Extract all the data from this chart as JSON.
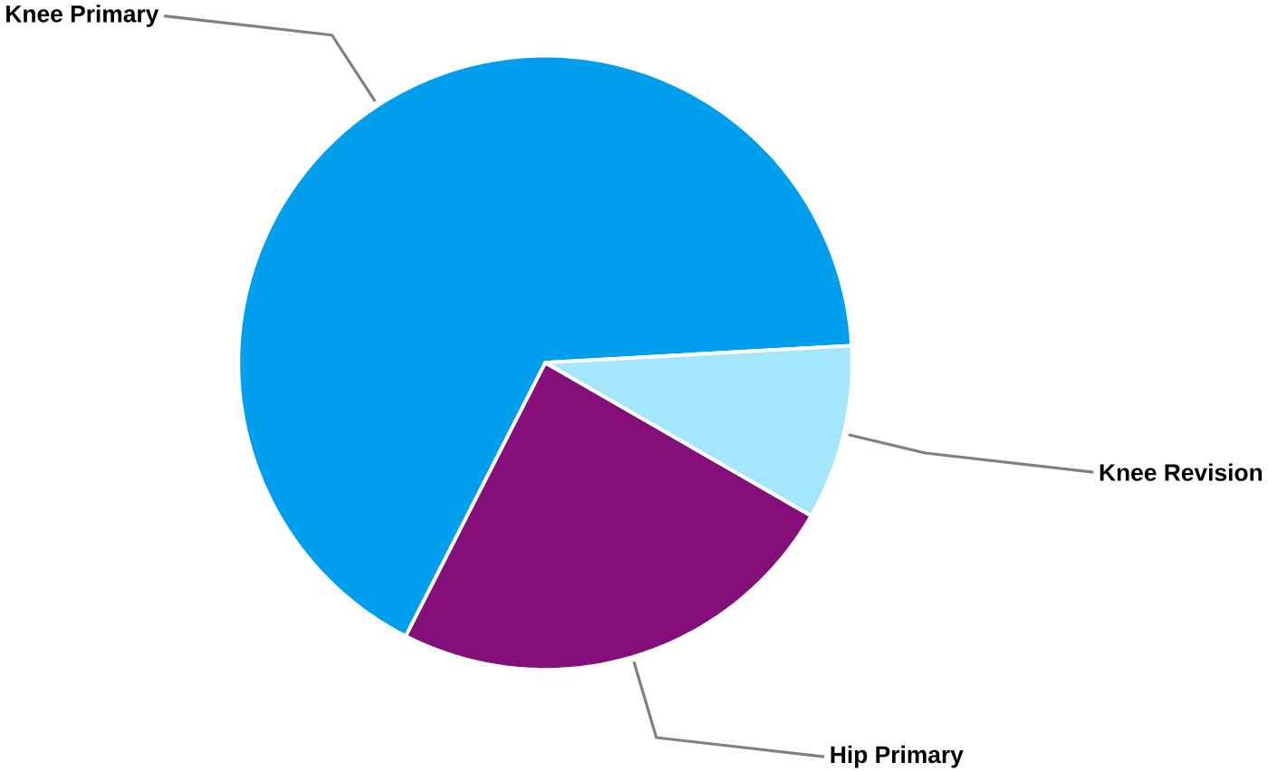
{
  "chart_data": {
    "type": "pie",
    "categories": [
      "Knee Primary",
      "Hip Primary",
      "Knee Revision"
    ],
    "values": [
      66.6,
      24.2,
      9.2
    ],
    "colors": [
      "#009fee",
      "#840f7a",
      "#a5e6ff"
    ]
  }
}
